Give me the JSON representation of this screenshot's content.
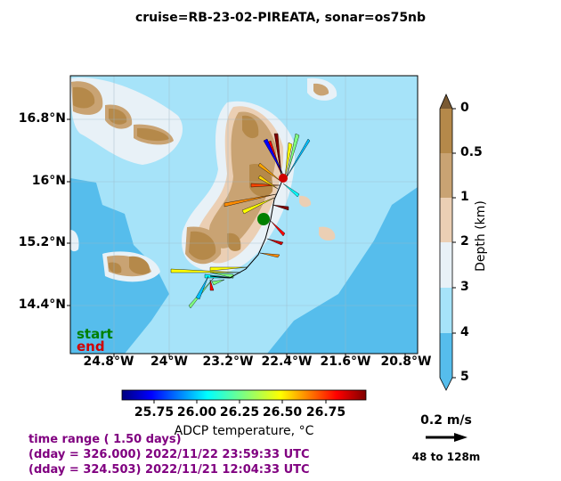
{
  "title": "cruise=RB-23-02-PIREATA,   sonar=os75nb",
  "map": {
    "lat_labels": [
      "16.8°N",
      "16°N",
      "15.2°N",
      "14.4°N"
    ],
    "lon_labels": [
      "24.8°W",
      "24°W",
      "23.2°W",
      "22.4°W",
      "21.6°W",
      "20.8°W"
    ],
    "start_label": "start",
    "end_label": "end",
    "start_color": "#008000",
    "end_color": "#d00000"
  },
  "depth_colorbar": {
    "label": "Depth (km)",
    "ticks": [
      "0",
      "0.5",
      "1",
      "2",
      "3",
      "4",
      "5"
    ],
    "colors": [
      "#b5894a",
      "#c9a373",
      "#ebcfb4",
      "#e8f1f7",
      "#a6e3f9",
      "#56bdec"
    ]
  },
  "temperature_colorbar": {
    "label": "ADCP temperature, °C",
    "ticks": [
      "25.75",
      "26.00",
      "26.25",
      "26.50",
      "26.75"
    ]
  },
  "info": {
    "time_range": "time range ( 1.50 days)",
    "end_time": "(dday = 326.000) 2022/11/22 23:59:33 UTC",
    "start_time": "(dday = 324.503) 2022/11/21 12:04:33 UTC"
  },
  "scale": {
    "speed_label": "0.2 m/s",
    "depth_range": "48 to 128m"
  }
}
